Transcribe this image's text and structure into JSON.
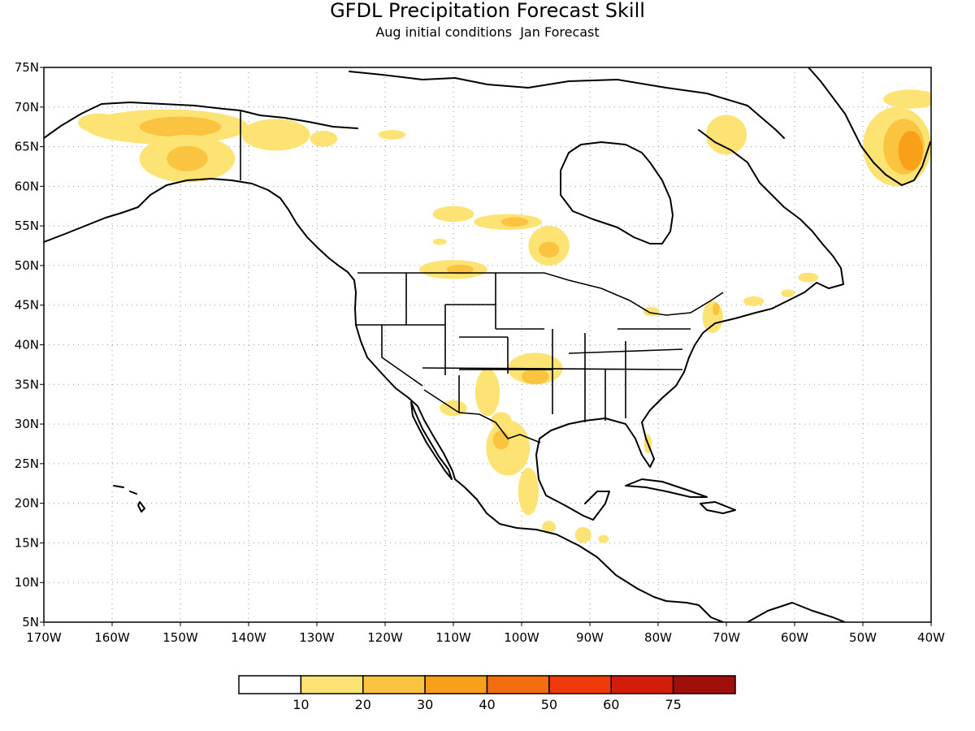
{
  "title": "GFDL Precipitation Forecast Skill",
  "subtitle": "Aug initial conditions  Jan Forecast",
  "map": {
    "lon_range": [
      -170,
      -40
    ],
    "lat_range": [
      5,
      75
    ],
    "lon_ticks": [
      -170,
      -160,
      -150,
      -140,
      -130,
      -120,
      -110,
      -100,
      -90,
      -80,
      -70,
      -60,
      -50,
      -40
    ],
    "lon_tick_labels": [
      "170W",
      "160W",
      "150W",
      "140W",
      "130W",
      "120W",
      "110W",
      "100W",
      "90W",
      "80W",
      "70W",
      "60W",
      "50W",
      "40W"
    ],
    "lat_ticks": [
      75,
      70,
      65,
      60,
      55,
      50,
      45,
      40,
      35,
      30,
      25,
      20,
      15,
      10,
      5
    ],
    "lat_tick_labels": [
      "75N",
      "70N",
      "65N",
      "60N",
      "55N",
      "50N",
      "45N",
      "40N",
      "35N",
      "30N",
      "25N",
      "20N",
      "15N",
      "10N",
      "5N"
    ],
    "grid": true
  },
  "colorbar": {
    "colors": [
      "#ffffff",
      "#fde373",
      "#fbc440",
      "#f9a01a",
      "#f46d0e",
      "#ef3a0a",
      "#d41c0a",
      "#a0100a"
    ],
    "labels": [
      "10",
      "20",
      "30",
      "40",
      "50",
      "60",
      "75"
    ]
  },
  "skill_regions": [
    {
      "name": "alaska-north",
      "level": 1,
      "lon": -152,
      "lat": 67.5,
      "rlon": 12,
      "rlat": 2.2
    },
    {
      "name": "alaska-north-core",
      "level": 2,
      "lon": -150,
      "lat": 67.5,
      "rlon": 6,
      "rlat": 1.3
    },
    {
      "name": "alaska-west",
      "level": 1,
      "lon": -162,
      "lat": 68,
      "rlon": 3,
      "rlat": 1.2
    },
    {
      "name": "alaska-interior",
      "level": 1,
      "lon": -149,
      "lat": 63.5,
      "rlon": 7,
      "rlat": 3
    },
    {
      "name": "alaska-interior-core",
      "level": 2,
      "lon": -149,
      "lat": 63.5,
      "rlon": 3,
      "rlat": 1.6
    },
    {
      "name": "yukon",
      "level": 1,
      "lon": -136,
      "lat": 66.5,
      "rlon": 5,
      "rlat": 2
    },
    {
      "name": "yukon-east",
      "level": 1,
      "lon": -129,
      "lat": 66,
      "rlon": 2,
      "rlat": 1
    },
    {
      "name": "nunavut-south",
      "level": 1,
      "lon": -119,
      "lat": 66.5,
      "rlon": 2,
      "rlat": 0.6
    },
    {
      "name": "greenland-coast",
      "level": 1,
      "lon": -45,
      "lat": 65,
      "rlon": 5,
      "rlat": 5
    },
    {
      "name": "greenland-east",
      "level": 1,
      "lon": -43,
      "lat": 71,
      "rlon": 4,
      "rlat": 1.2
    },
    {
      "name": "greenland-coast-mid",
      "level": 2,
      "lon": -44,
      "lat": 65,
      "rlon": 3,
      "rlat": 3.5
    },
    {
      "name": "greenland-coast-core",
      "level": 3,
      "lon": -43,
      "lat": 64.5,
      "rlon": 1.8,
      "rlat": 2.5
    },
    {
      "name": "baffin",
      "level": 1,
      "lon": -70,
      "lat": 66.5,
      "rlon": 3,
      "rlat": 2.5
    },
    {
      "name": "manitoba-north",
      "level": 1,
      "lon": -110,
      "lat": 56.5,
      "rlon": 3,
      "rlat": 1
    },
    {
      "name": "manitoba",
      "level": 1,
      "lon": -102,
      "lat": 55.5,
      "rlon": 5,
      "rlat": 1
    },
    {
      "name": "manitoba-core",
      "level": 2,
      "lon": -101,
      "lat": 55.5,
      "rlon": 2,
      "rlat": 0.6
    },
    {
      "name": "ontario-west",
      "level": 1,
      "lon": -96,
      "lat": 52.5,
      "rlon": 3,
      "rlat": 2.5
    },
    {
      "name": "ontario-west-core",
      "level": 2,
      "lon": -96,
      "lat": 52,
      "rlon": 1.5,
      "rlat": 1
    },
    {
      "name": "saskatchewan-south",
      "level": 1,
      "lon": -110,
      "lat": 49.5,
      "rlon": 5,
      "rlat": 1.2
    },
    {
      "name": "saskatchewan-core",
      "level": 2,
      "lon": -109,
      "lat": 49.5,
      "rlon": 2,
      "rlat": 0.6
    },
    {
      "name": "alberta-dot",
      "level": 1,
      "lon": -112,
      "lat": 53,
      "rlon": 1,
      "rlat": 0.4
    },
    {
      "name": "southern-plains",
      "level": 1,
      "lon": -98,
      "lat": 37,
      "rlon": 4,
      "rlat": 2
    },
    {
      "name": "southern-plains-core",
      "level": 2,
      "lon": -98,
      "lat": 36,
      "rlon": 2,
      "rlat": 1
    },
    {
      "name": "new-mexico",
      "level": 1,
      "lon": -105,
      "lat": 34,
      "rlon": 1.8,
      "rlat": 3
    },
    {
      "name": "arizona-south",
      "level": 1,
      "lon": -110,
      "lat": 32,
      "rlon": 2,
      "rlat": 1
    },
    {
      "name": "west-texas",
      "level": 1,
      "lon": -103,
      "lat": 30.5,
      "rlon": 1.5,
      "rlat": 1
    },
    {
      "name": "mexico-north",
      "level": 1,
      "lon": -102,
      "lat": 27,
      "rlon": 3.2,
      "rlat": 3.5
    },
    {
      "name": "mexico-north-core",
      "level": 2,
      "lon": -103,
      "lat": 28,
      "rlon": 1.2,
      "rlat": 1.2
    },
    {
      "name": "mexico-central",
      "level": 1,
      "lon": -99,
      "lat": 21.5,
      "rlon": 1.5,
      "rlat": 3
    },
    {
      "name": "mexico-south",
      "level": 1,
      "lon": -96,
      "lat": 17,
      "rlon": 1,
      "rlat": 0.8
    },
    {
      "name": "guatemala",
      "level": 1,
      "lon": -91,
      "lat": 16,
      "rlon": 1.2,
      "rlat": 1
    },
    {
      "name": "honduras",
      "level": 1,
      "lon": -88,
      "lat": 15.5,
      "rlon": 0.8,
      "rlat": 0.5
    },
    {
      "name": "florida",
      "level": 1,
      "lon": -81.5,
      "lat": 27.5,
      "rlon": 0.6,
      "rlat": 1.2
    },
    {
      "name": "great-lakes",
      "level": 1,
      "lon": -81,
      "lat": 44.2,
      "rlon": 1.2,
      "rlat": 0.6
    },
    {
      "name": "new-england",
      "level": 1,
      "lon": -72,
      "lat": 43.5,
      "rlon": 1.5,
      "rlat": 2
    },
    {
      "name": "new-england-core",
      "level": 2,
      "lon": -71.5,
      "lat": 44.5,
      "rlon": 0.5,
      "rlat": 0.8
    },
    {
      "name": "nova-scotia",
      "level": 1,
      "lon": -66,
      "lat": 45.5,
      "rlon": 1.5,
      "rlat": 0.6
    },
    {
      "name": "newfoundland",
      "level": 1,
      "lon": -58,
      "lat": 48.5,
      "rlon": 1.5,
      "rlat": 0.6
    },
    {
      "name": "quebec-east",
      "level": 1,
      "lon": -61,
      "lat": 46.5,
      "rlon": 1,
      "rlat": 0.5
    }
  ]
}
